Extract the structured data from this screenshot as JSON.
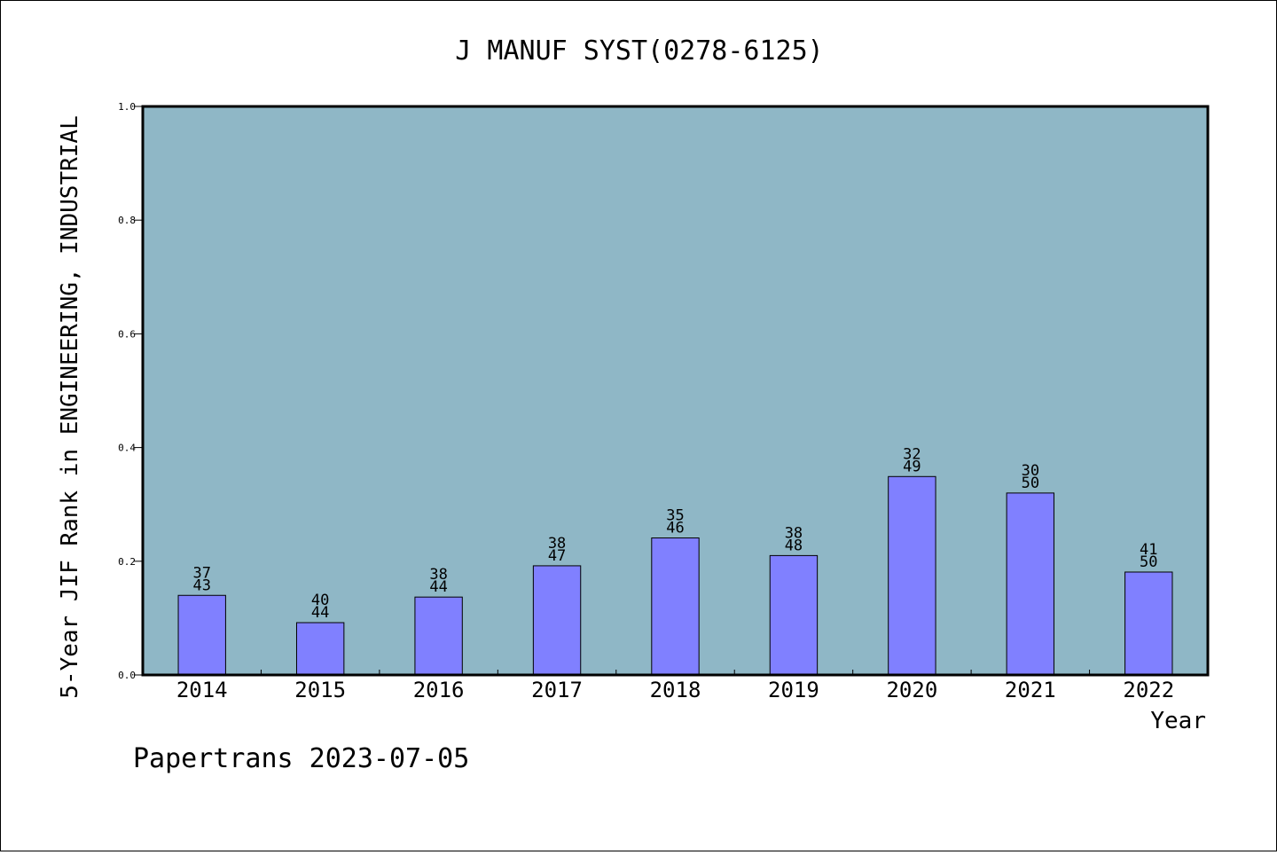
{
  "chart_data": {
    "type": "bar",
    "title": "J MANUF SYST(0278-6125)",
    "xlabel": "Year",
    "ylabel": "5-Year JIF Rank in ENGINEERING, INDUSTRIAL",
    "ylim": [
      0,
      1.0
    ],
    "yticks": [
      "0.0",
      "0.2",
      "0.4",
      "0.6",
      "0.8",
      "1.0"
    ],
    "categories": [
      "2014",
      "2015",
      "2016",
      "2017",
      "2018",
      "2019",
      "2020",
      "2021",
      "2022"
    ],
    "values": [
      0.14,
      0.092,
      0.137,
      0.192,
      0.241,
      0.21,
      0.349,
      0.32,
      0.181
    ],
    "labels_top": [
      "37",
      "40",
      "38",
      "38",
      "35",
      "38",
      "32",
      "30",
      "41"
    ],
    "labels_bottom": [
      "43",
      "44",
      "44",
      "47",
      "46",
      "48",
      "49",
      "50",
      "50"
    ],
    "grid": false,
    "colors": {
      "plot_background": "#8fb7c6",
      "bar_fill": "#8080ff",
      "bar_stroke": "#000000"
    }
  },
  "footer": {
    "text": "Papertrans 2023-07-05"
  }
}
